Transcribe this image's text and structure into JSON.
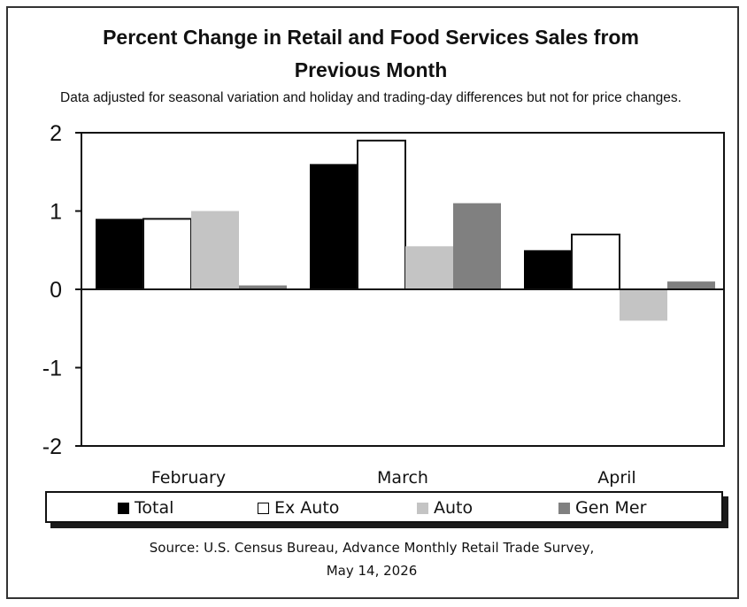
{
  "chart_data": {
    "type": "bar",
    "title_line1": "Percent Change in Retail and Food Services Sales from",
    "title_line2": "Previous Month",
    "subtitle": "Data adjusted for seasonal variation and holiday and trading-day differences but not for price changes.",
    "categories": [
      "February",
      "March",
      "April"
    ],
    "series": [
      {
        "name": "Total",
        "values": [
          0.9,
          1.6,
          0.5
        ],
        "color": "#000000"
      },
      {
        "name": "Ex Auto",
        "values": [
          0.9,
          1.9,
          0.7
        ],
        "color": "#ffffff"
      },
      {
        "name": "Auto",
        "values": [
          1.0,
          0.55,
          -0.4
        ],
        "color": "#c4c4c4"
      },
      {
        "name": "Gen Mer",
        "values": [
          0.05,
          1.1,
          0.1
        ],
        "color": "#808080"
      }
    ],
    "ylim": [
      -2,
      2
    ],
    "yticks": [
      "2",
      "1",
      "0",
      "-1",
      "-2"
    ],
    "legend_position": "bottom",
    "grid": false
  },
  "source_line1": "Source: U.S. Census Bureau, Advance Monthly Retail Trade Survey,",
  "source_line2": "May 14, 2026"
}
